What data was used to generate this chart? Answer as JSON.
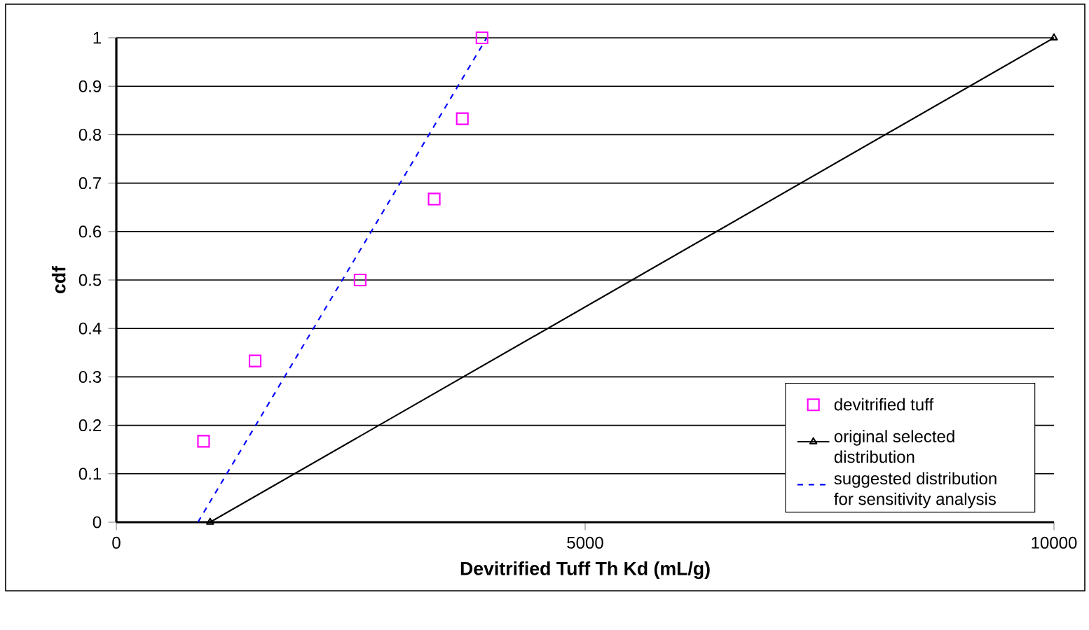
{
  "chart_data": {
    "type": "line",
    "xlabel": "Devitrified Tuff Th Kd (mL/g)",
    "ylabel": "cdf",
    "xlim": [
      0,
      10000
    ],
    "ylim": [
      0,
      1
    ],
    "xticks": [
      0,
      5000,
      10000
    ],
    "yticks": [
      0,
      0.1,
      0.2,
      0.3,
      0.4,
      0.5,
      0.6,
      0.7,
      0.8,
      0.9,
      1
    ],
    "grid": "y",
    "legend": "bottom right",
    "series": [
      {
        "name": "devitrified tuff",
        "type": "scatter",
        "color": "#ff00ff",
        "marker": "square",
        "x": [
          930,
          1480,
          2600,
          3390,
          3690,
          3900
        ],
        "values": [
          0.167,
          0.333,
          0.5,
          0.667,
          0.833,
          1.0
        ]
      },
      {
        "name": "original selected distribution",
        "type": "line",
        "color": "#000000",
        "marker": "triangle",
        "line_style": "solid",
        "x": [
          1000,
          10000
        ],
        "values": [
          0,
          1
        ]
      },
      {
        "name": "suggested distribution for sensitivity analysis",
        "type": "line",
        "color": "#0000ff",
        "marker": "none",
        "line_style": "dashed",
        "x": [
          870,
          3950
        ],
        "values": [
          0,
          1
        ]
      }
    ]
  }
}
